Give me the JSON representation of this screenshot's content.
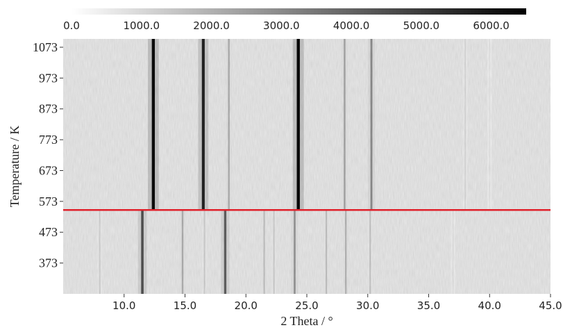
{
  "chart_data": {
    "type": "heatmap",
    "title": "",
    "xlabel": "2 Theta / °",
    "ylabel": "Temperature / K",
    "xlim": [
      5.0,
      45.0
    ],
    "ylim": [
      273,
      1100
    ],
    "x_ticks": [
      "10.0",
      "15.0",
      "20.0",
      "25.0",
      "30.0",
      "35.0",
      "40.0",
      "45.0"
    ],
    "x_tick_values": [
      10,
      15,
      20,
      25,
      30,
      35,
      40,
      45
    ],
    "y_ticks": [
      "1073",
      "973",
      "873",
      "773",
      "673",
      "573",
      "473",
      "373"
    ],
    "y_tick_values": [
      1073,
      973,
      873,
      773,
      673,
      573,
      473,
      373
    ],
    "colorbar": {
      "min": 0,
      "max": 6500,
      "ticks": [
        "0.0",
        "1000.0",
        "2000.0",
        "3000.0",
        "4000.0",
        "5000.0",
        "6000.0"
      ],
      "tick_values": [
        0,
        1000,
        2000,
        3000,
        4000,
        5000,
        6000
      ],
      "colormap": "white-to-black"
    },
    "phase_transition_line": {
      "temperature": 545,
      "color": "#e0202a"
    },
    "peaks_high_temperature": [
      {
        "two_theta": 12.4,
        "intensity": 6200
      },
      {
        "two_theta": 16.5,
        "intensity": 5600
      },
      {
        "two_theta": 18.6,
        "intensity": 2000
      },
      {
        "two_theta": 24.3,
        "intensity": 6300
      },
      {
        "two_theta": 28.1,
        "intensity": 2200
      },
      {
        "two_theta": 30.3,
        "intensity": 2900
      },
      {
        "two_theta": 38.0,
        "intensity": 900
      },
      {
        "two_theta": 40.0,
        "intensity": 600
      }
    ],
    "peaks_low_temperature": [
      {
        "two_theta": 8.0,
        "intensity": 1100
      },
      {
        "two_theta": 11.5,
        "intensity": 4400
      },
      {
        "two_theta": 14.8,
        "intensity": 2000
      },
      {
        "two_theta": 16.6,
        "intensity": 1200
      },
      {
        "two_theta": 18.3,
        "intensity": 4000
      },
      {
        "two_theta": 21.5,
        "intensity": 1500
      },
      {
        "two_theta": 22.3,
        "intensity": 1200
      },
      {
        "two_theta": 24.0,
        "intensity": 2600
      },
      {
        "two_theta": 26.6,
        "intensity": 1500
      },
      {
        "two_theta": 28.2,
        "intensity": 1800
      },
      {
        "two_theta": 30.2,
        "intensity": 1400
      },
      {
        "two_theta": 37.0,
        "intensity": 700
      }
    ],
    "grid": false,
    "legend": "colorbar-top"
  }
}
